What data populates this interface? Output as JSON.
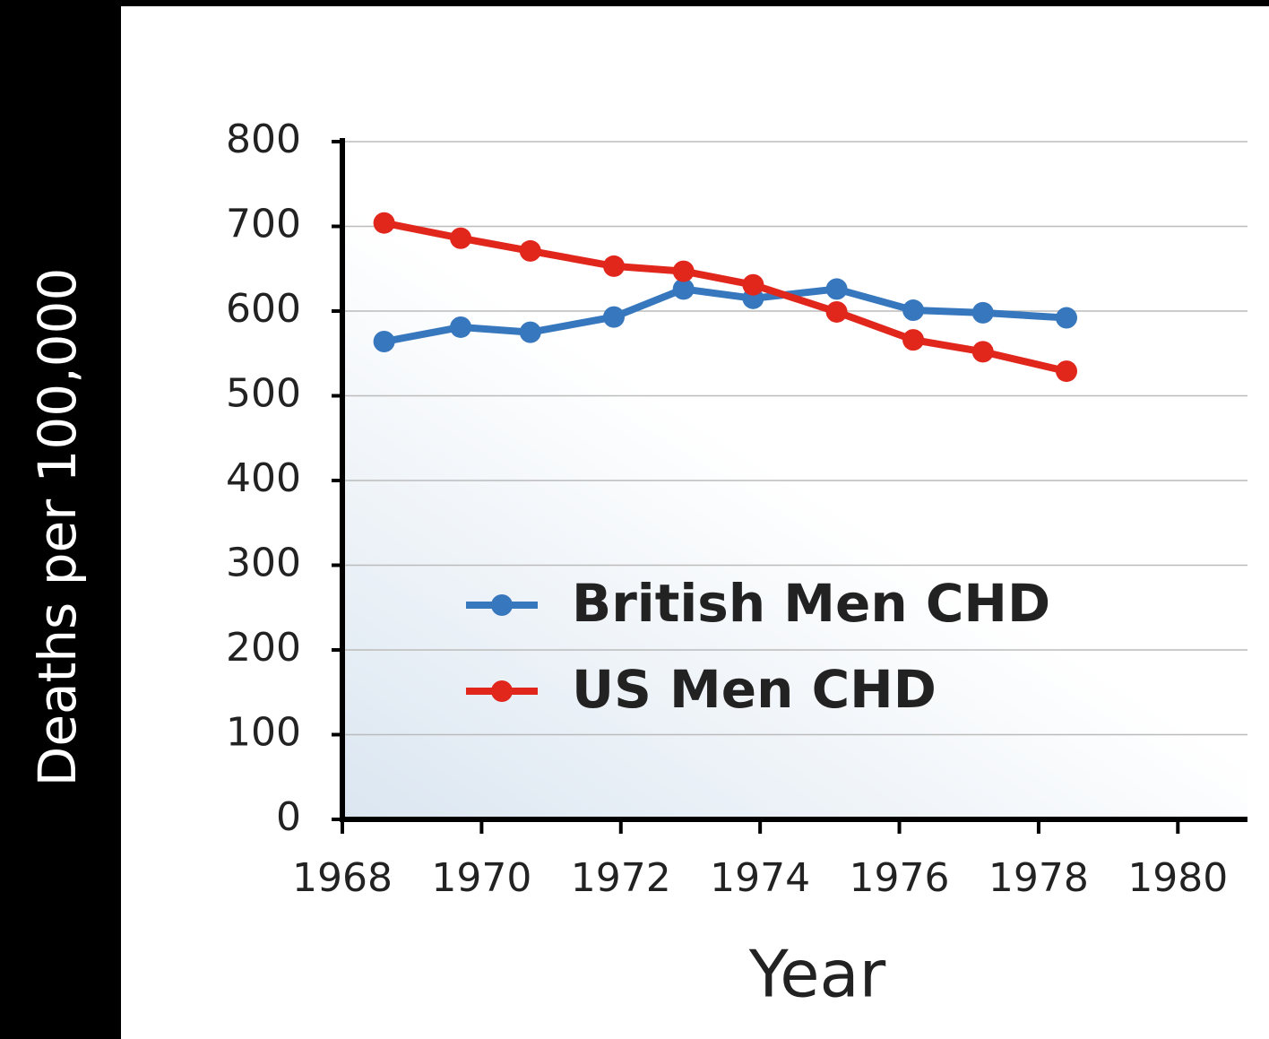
{
  "chart_data": {
    "type": "line",
    "x_label": "Year",
    "y_label": "Deaths per 100,000",
    "xlim": [
      1968,
      1981
    ],
    "xticks": [
      1968,
      1970,
      1972,
      1974,
      1976,
      1978,
      1980
    ],
    "ylim": [
      0,
      800
    ],
    "yticks": [
      0,
      100,
      200,
      300,
      400,
      500,
      600,
      700,
      800
    ],
    "grid": true,
    "legend": "center",
    "series": [
      {
        "name": "British Men CHD",
        "color": "#3777bd",
        "x": [
          1968.6,
          1969.7,
          1970.7,
          1971.9,
          1972.9,
          1973.9,
          1975.1,
          1976.2,
          1977.2,
          1978.4
        ],
        "values": [
          564,
          581,
          575,
          593,
          626,
          615,
          626,
          601,
          598,
          592
        ]
      },
      {
        "name": "US Men CHD",
        "color": "#e1261c",
        "x": [
          1968.6,
          1969.7,
          1970.7,
          1971.9,
          1972.9,
          1973.9,
          1975.1,
          1976.2,
          1977.2,
          1978.4
        ],
        "values": [
          704,
          686,
          671,
          653,
          647,
          631,
          599,
          566,
          552,
          529
        ]
      }
    ]
  }
}
